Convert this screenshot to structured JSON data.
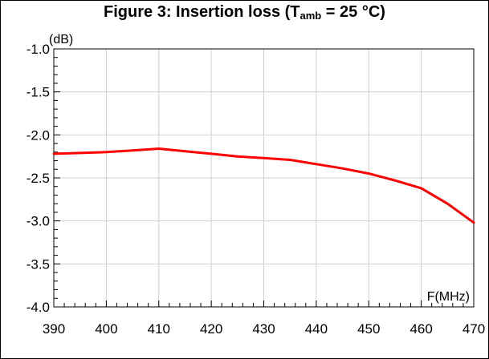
{
  "title": {
    "prefix": "Figure 3: Insertion loss (T",
    "subscript": "amb",
    "suffix": " = 25 °C)"
  },
  "chart_data": {
    "type": "line",
    "title": "Figure 3: Insertion loss (Tamb = 25 °C)",
    "xlabel": "F(MHz)",
    "ylabel": "(dB)",
    "xlim": [
      390,
      470
    ],
    "ylim": [
      -4.0,
      -1.0
    ],
    "x_ticks": [
      "390",
      "400",
      "410",
      "420",
      "430",
      "440",
      "450",
      "460",
      "470"
    ],
    "y_ticks": [
      "-1.0",
      "-1.5",
      "-2.0",
      "-2.5",
      "-3.0",
      "-3.5",
      "-4.0"
    ],
    "grid": true,
    "series": [
      {
        "color": "#ff0000",
        "x": [
          390,
          395,
          400,
          405,
          410,
          415,
          420,
          425,
          430,
          435,
          440,
          445,
          450,
          455,
          460,
          465,
          470
        ],
        "y": [
          -2.22,
          -2.21,
          -2.2,
          -2.18,
          -2.16,
          -2.19,
          -2.22,
          -2.25,
          -2.27,
          -2.29,
          -2.34,
          -2.39,
          -2.45,
          -2.53,
          -2.62,
          -2.8,
          -3.02
        ]
      }
    ]
  },
  "colors": {
    "line": "#ff0000",
    "grid": "#d0d0d0",
    "axis": "#000000"
  }
}
